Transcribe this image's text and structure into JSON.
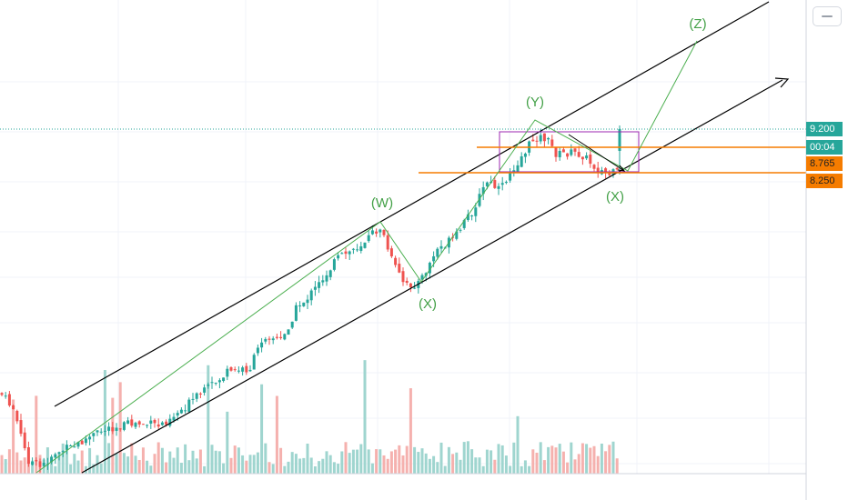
{
  "chart_data": {
    "type": "candlestick",
    "price_labels": {
      "last_price": "9.200",
      "countdown": "00:04",
      "level_upper": "8.765",
      "level_lower": "8.250"
    },
    "wave_labels": [
      "(W)",
      "(X)",
      "(Y)",
      "(X)",
      "(Z)"
    ],
    "colors": {
      "up": "#26a69a",
      "down": "#ef5350",
      "wave_line": "#4caf50",
      "wave_text": "#43a047",
      "channel": "#000000",
      "level_line": "#f57c00",
      "box": "#9c27b0",
      "last_price": "#26a69a",
      "volume_up": "#9fd5cf",
      "volume_down": "#f5b1ae",
      "grid": "#f0f3fa"
    },
    "grid": true
  }
}
